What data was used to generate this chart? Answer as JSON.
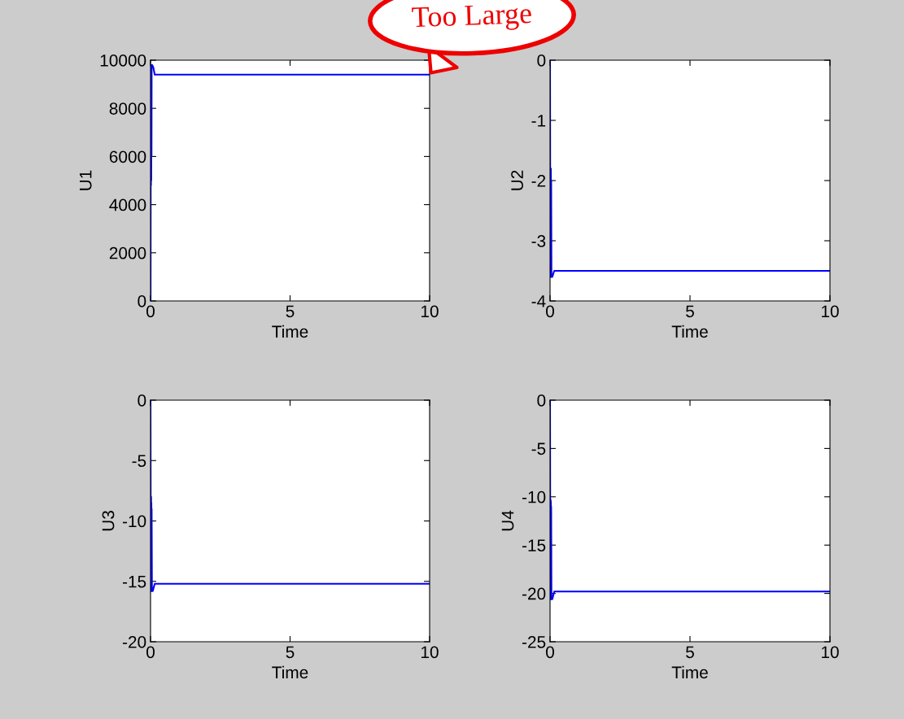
{
  "chart_data": [
    {
      "type": "line",
      "xlabel": "Time",
      "ylabel": "U1",
      "xlim": [
        0,
        10
      ],
      "xticks": [
        0,
        5,
        10
      ],
      "ylim": [
        0,
        10000
      ],
      "yticks": [
        0,
        2000,
        4000,
        6000,
        8000,
        10000
      ],
      "grid": false,
      "legend": false,
      "series": [
        {
          "color": "#0000ff",
          "x": [
            0,
            0.002,
            0.01,
            0.015,
            0.02,
            0.025,
            0.03,
            0.035,
            0.04,
            0.06,
            0.1,
            0.15,
            0.3,
            10
          ],
          "values": [
            0,
            0,
            9600,
            4800,
            9700,
            5000,
            9800,
            6000,
            9700,
            9800,
            9700,
            9400,
            9400,
            9400
          ]
        }
      ],
      "annotations": [
        {
          "text": "Too Large",
          "x": 10,
          "y": 9400
        }
      ]
    },
    {
      "type": "line",
      "xlabel": "Time",
      "ylabel": "U2",
      "xlim": [
        0,
        10
      ],
      "xticks": [
        0,
        5,
        10
      ],
      "ylim": [
        -4,
        0
      ],
      "yticks": [
        -4,
        -3,
        -2,
        -1,
        0
      ],
      "grid": false,
      "legend": false,
      "series": [
        {
          "color": "#0000ff",
          "x": [
            0,
            0.01,
            0.02,
            0.025,
            0.03,
            0.035,
            0.04,
            0.05,
            0.08,
            0.15,
            10
          ],
          "values": [
            0,
            -3.6,
            -1.8,
            -3.6,
            -1.8,
            -3.6,
            -2,
            -3.6,
            -3.6,
            -3.5,
            -3.5
          ]
        }
      ]
    },
    {
      "type": "line",
      "xlabel": "Time",
      "ylabel": "U3",
      "xlim": [
        0,
        10
      ],
      "xticks": [
        0,
        5,
        10
      ],
      "ylim": [
        -20,
        0
      ],
      "yticks": [
        -20,
        -15,
        -10,
        -5,
        0
      ],
      "grid": false,
      "legend": false,
      "series": [
        {
          "color": "#0000ff",
          "x": [
            0,
            0.01,
            0.02,
            0.025,
            0.03,
            0.035,
            0.04,
            0.05,
            0.08,
            0.15,
            10
          ],
          "values": [
            0,
            -15.8,
            -8,
            -15.8,
            -8.5,
            -15.8,
            -9,
            -15.8,
            -15.8,
            -15.2,
            -15.2
          ]
        }
      ]
    },
    {
      "type": "line",
      "xlabel": "Time",
      "ylabel": "U4",
      "xlim": [
        0,
        10
      ],
      "xticks": [
        0,
        5,
        10
      ],
      "ylim": [
        -25,
        0
      ],
      "yticks": [
        -25,
        -20,
        -15,
        -10,
        -5,
        0
      ],
      "grid": false,
      "legend": false,
      "series": [
        {
          "color": "#0000ff",
          "x": [
            0,
            0.01,
            0.02,
            0.025,
            0.03,
            0.035,
            0.04,
            0.05,
            0.08,
            0.15,
            10
          ],
          "values": [
            0,
            -20.6,
            -10.3,
            -20.6,
            -10.5,
            -20.6,
            -11,
            -20.6,
            -20.6,
            -19.8,
            -19.8
          ]
        }
      ]
    }
  ]
}
